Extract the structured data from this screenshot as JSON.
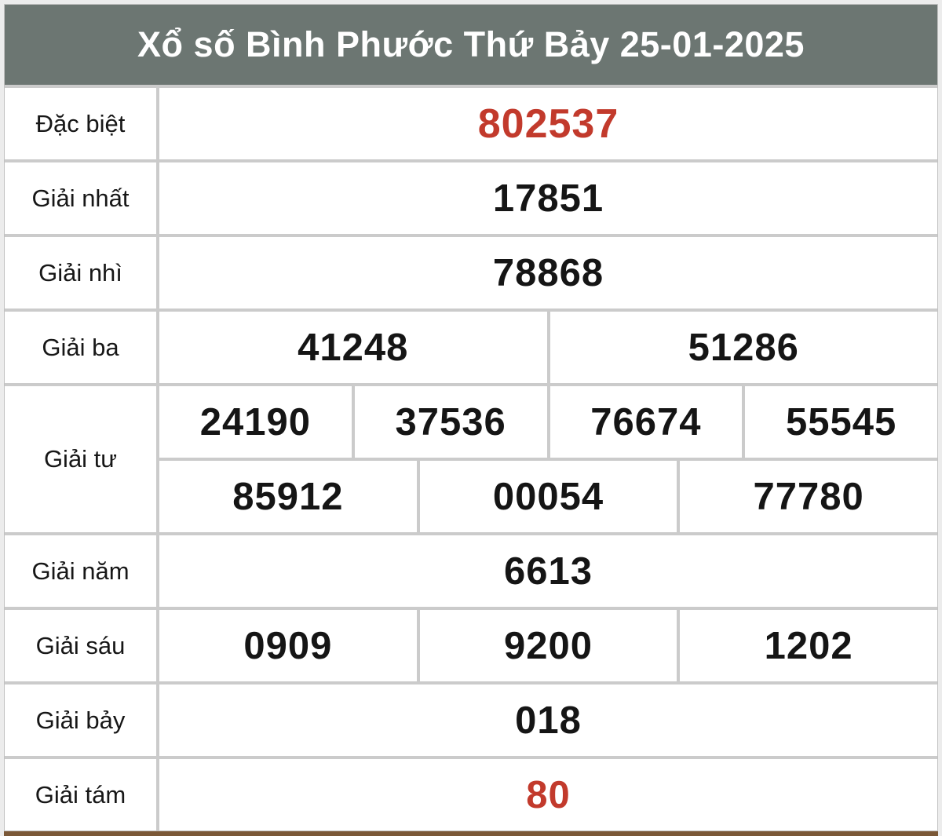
{
  "header": {
    "title": "Xổ số Bình Phước Thứ Bảy 25-01-2025"
  },
  "table": {
    "rows": [
      {
        "key": "dac-biet",
        "label": "Đặc biệt",
        "highlight": true,
        "groups": [
          [
            "802537"
          ]
        ]
      },
      {
        "key": "giai-nhat",
        "label": "Giải nhất",
        "highlight": false,
        "groups": [
          [
            "17851"
          ]
        ]
      },
      {
        "key": "giai-nhi",
        "label": "Giải nhì",
        "highlight": false,
        "groups": [
          [
            "78868"
          ]
        ]
      },
      {
        "key": "giai-ba",
        "label": "Giải ba",
        "highlight": false,
        "groups": [
          [
            "41248",
            "51286"
          ]
        ]
      },
      {
        "key": "giai-tu",
        "label": "Giải tư",
        "highlight": false,
        "groups": [
          [
            "24190",
            "37536",
            "76674",
            "55545"
          ],
          [
            "85912",
            "00054",
            "77780"
          ]
        ]
      },
      {
        "key": "giai-nam",
        "label": "Giải năm",
        "highlight": false,
        "groups": [
          [
            "6613"
          ]
        ]
      },
      {
        "key": "giai-sau",
        "label": "Giải sáu",
        "highlight": false,
        "groups": [
          [
            "0909",
            "9200",
            "1202"
          ]
        ]
      },
      {
        "key": "giai-bay",
        "label": "Giải bảy",
        "highlight": false,
        "groups": [
          [
            "018"
          ]
        ]
      },
      {
        "key": "giai-tam",
        "label": "Giải tám",
        "highlight": true,
        "groups": [
          [
            "80"
          ]
        ]
      }
    ]
  },
  "colors": {
    "header_bg": "#6c7672",
    "header_text": "#ffffff",
    "cell_bg": "#ffffff",
    "border": "#cbcbcb",
    "number_text": "#151515",
    "highlight_red": "#c23a2c",
    "bottom_line_brown": "#7b5837",
    "bottom_line_tan": "#d9c9ad"
  }
}
